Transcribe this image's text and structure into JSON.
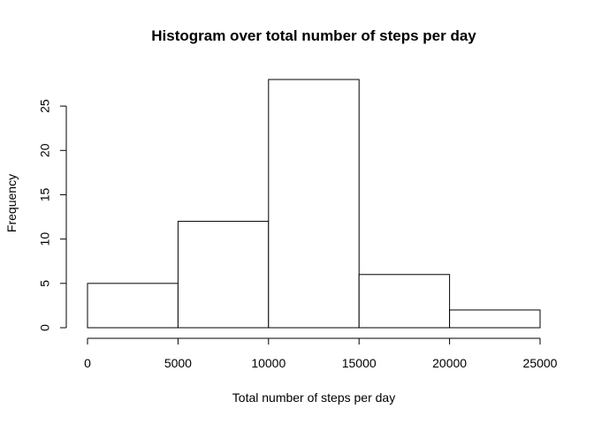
{
  "chart_data": {
    "type": "bar",
    "title": "Histogram over total number of steps per day",
    "xlabel": "Total number of steps per day",
    "ylabel": "Frequency",
    "bins": [
      {
        "start": 0,
        "end": 5000,
        "value": 5
      },
      {
        "start": 5000,
        "end": 10000,
        "value": 12
      },
      {
        "start": 10000,
        "end": 15000,
        "value": 28
      },
      {
        "start": 15000,
        "end": 20000,
        "value": 6
      },
      {
        "start": 20000,
        "end": 25000,
        "value": 2
      }
    ],
    "xlim": [
      0,
      25000
    ],
    "ylim": [
      0,
      28
    ],
    "xticks": [
      0,
      5000,
      10000,
      15000,
      20000,
      25000
    ],
    "xtick_labels": [
      "0",
      "5000",
      "10000",
      "15000",
      "20000",
      "25000"
    ],
    "yticks": [
      0,
      5,
      10,
      15,
      20,
      25
    ],
    "ytick_labels": [
      "0",
      "5",
      "10",
      "15",
      "20",
      "25"
    ],
    "grid": false,
    "colors": {
      "bar_fill": "#ffffff",
      "bar_stroke": "#000000"
    }
  }
}
